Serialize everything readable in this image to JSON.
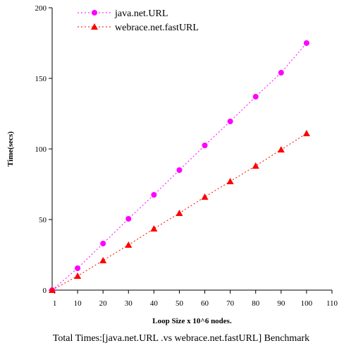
{
  "chart_data": {
    "type": "line",
    "title": "",
    "caption": "Total Times:[java.net.URL .vs webrace.net.fastURL] Benchmark",
    "xlabel": "Loop Size x 10^6 nodes.",
    "ylabel": "Time(secs)",
    "xlim": [
      0,
      110
    ],
    "ylim": [
      0,
      200
    ],
    "xticks": [
      1,
      10,
      20,
      30,
      40,
      50,
      60,
      70,
      80,
      90,
      100,
      110
    ],
    "yticks": [
      0,
      50,
      100,
      150,
      200
    ],
    "grid": false,
    "legend_position": "top-left",
    "series": [
      {
        "name": "java.net.URL",
        "color": "#ff00ff",
        "marker": "circle",
        "line_style": "dotted",
        "x": [
          0,
          10,
          20,
          30,
          40,
          50,
          60,
          70,
          80,
          90,
          100
        ],
        "y": [
          0,
          15.5,
          33,
          50.5,
          67.5,
          85,
          102.5,
          119.5,
          137,
          154,
          175
        ]
      },
      {
        "name": "webrace.net.fastURL",
        "color": "#ff0000",
        "marker": "triangle",
        "line_style": "dotted",
        "x": [
          0,
          10,
          20,
          30,
          40,
          50,
          60,
          70,
          80,
          90,
          100
        ],
        "y": [
          0,
          10,
          21,
          32,
          43.5,
          54.5,
          66,
          77,
          88,
          99.5,
          111
        ]
      }
    ]
  }
}
